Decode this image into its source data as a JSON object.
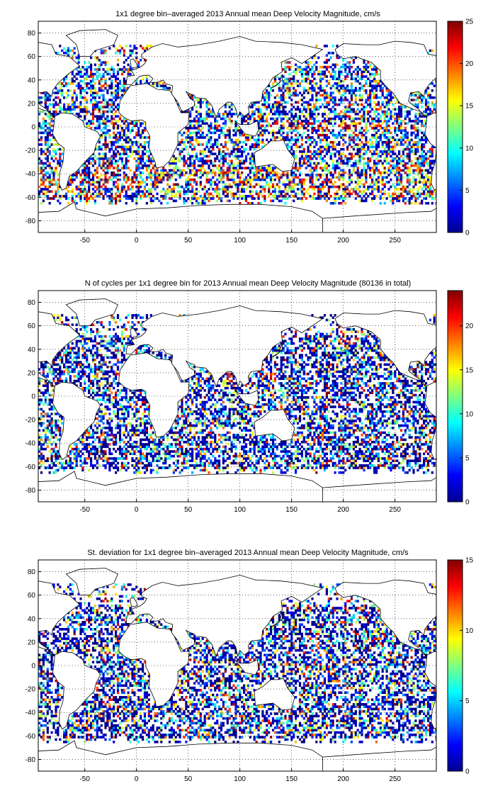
{
  "chart_data": [
    {
      "type": "heatmap",
      "title": "1x1 degree bin–averaged 2013 Annual mean Deep Velocity Magnitude, cm/s",
      "x_ticks": [
        -50,
        0,
        50,
        100,
        150,
        200,
        250
      ],
      "y_ticks": [
        -80,
        -60,
        -40,
        -20,
        0,
        20,
        40,
        60,
        80
      ],
      "xlim": [
        -95,
        290
      ],
      "ylim": [
        -90,
        90
      ],
      "grid": true,
      "colorbar": {
        "ticks": [
          0,
          5,
          10,
          15,
          20,
          25
        ],
        "range": [
          0,
          25
        ],
        "colormap": "jet"
      }
    },
    {
      "type": "heatmap",
      "title": "N of cycles per 1x1 degree bin for 2013 Annual mean Deep Velocity Magnitude (80136 in total)",
      "x_ticks": [
        -50,
        0,
        50,
        100,
        150,
        200,
        250
      ],
      "y_ticks": [
        -80,
        -60,
        -40,
        -20,
        0,
        20,
        40,
        60,
        80
      ],
      "xlim": [
        -95,
        290
      ],
      "ylim": [
        -90,
        90
      ],
      "grid": true,
      "colorbar": {
        "ticks": [
          0,
          5,
          10,
          15,
          20
        ],
        "range": [
          0,
          24
        ],
        "colormap": "jet"
      }
    },
    {
      "type": "heatmap",
      "title": "St. deviation for 1x1 degree bin–averaged 2013 Annual mean Deep Velocity Magnitude, cm/s",
      "x_ticks": [
        -50,
        0,
        50,
        100,
        150,
        200,
        250
      ],
      "y_ticks": [
        -80,
        -60,
        -40,
        -20,
        0,
        20,
        40,
        60,
        80
      ],
      "xlim": [
        -95,
        290
      ],
      "ylim": [
        -90,
        90
      ],
      "grid": true,
      "colorbar": {
        "ticks": [
          0,
          5,
          10,
          15
        ],
        "range": [
          0,
          15
        ],
        "colormap": "jet"
      }
    }
  ]
}
